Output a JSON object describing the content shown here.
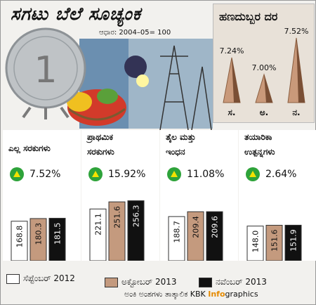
{
  "header": {
    "title": "ಸಗಟು ಬೆಲೆ ಸೂಚ್ಯಂಕ",
    "subtitle": "ಆಧಾರ: 2004–05= 100"
  },
  "inflation_panel": {
    "title": "ಹಣದುಬ್ಬರ ದರ",
    "values": [
      "7.24%",
      "7.00%",
      "7.52%"
    ],
    "month_labels": [
      "ಸ.",
      "ಅ.",
      "ನ."
    ]
  },
  "legend": {
    "items": [
      "ಸೆಪ್ಟೆಂಬರ್ 2012",
      "ಅಕ್ಟೋಬರ್ 2013",
      "ನವೆಂಬರ್ 2013"
    ]
  },
  "credit": {
    "source": "ಅಂಕಿ ಅಂಶಗಳು ತಾತ್ಕಾಲಿಕ",
    "kbk": "KBK",
    "info": "Info",
    "graphics": "graphics"
  },
  "colors": {
    "series": [
      "#ffffff",
      "#c49a7e",
      "#111111"
    ],
    "badge": "#2ea33a",
    "arrow": "#f4e200",
    "brand": "#e58a00"
  },
  "chart_data": {
    "type": "bar",
    "title": "ಸಗಟು ಬೆಲೆ ಸೂಚ್ಯಂಕ",
    "subtitle": "ಆಧಾರ: 2004–05= 100",
    "categories": [
      "ಎಲ್ಲ ಸರಕುಗಳು",
      "ಪ್ರಾಥಮಿಕ ಸರಕುಗಳು",
      "ತೈಲ ಮತ್ತು ಇಂಧನ",
      "ತಯಾರಿಕಾ ಉತ್ಪನ್ನಗಳು"
    ],
    "category_lines": [
      [
        "ಎಲ್ಲ ಸರಕುಗಳು"
      ],
      [
        "ಪ್ರಾಥಮಿಕ",
        "ಸರಕುಗಳು"
      ],
      [
        "ತೈಲ ಮತ್ತು",
        "ಇಂಧನ"
      ],
      [
        "ತಯಾರಿಕಾ",
        "ಉತ್ಪನ್ನಗಳು"
      ]
    ],
    "growth": [
      "7.52%",
      "15.92%",
      "11.08%",
      "2.64%"
    ],
    "series": [
      {
        "name": "ಸೆಪ್ಟೆಂಬರ್ 2012",
        "values": [
          168.8,
          221.1,
          188.7,
          148.0
        ]
      },
      {
        "name": "ಅಕ್ಟೋಬರ್ 2013",
        "values": [
          180.3,
          251.6,
          209.4,
          151.6
        ]
      },
      {
        "name": "ನವೆಂಬರ್ 2013",
        "values": [
          181.5,
          256.3,
          209.6,
          151.9
        ]
      }
    ],
    "value_labels": [
      [
        "168.8",
        "180.3",
        "181.5"
      ],
      [
        "221.1",
        "251.6",
        "256.3"
      ],
      [
        "188.7",
        "209.4",
        "209.6"
      ],
      [
        "148.0",
        "151.6",
        "151.9"
      ]
    ],
    "ylim": [
      0,
      270
    ],
    "legend_position": "bottom",
    "grid": false
  }
}
